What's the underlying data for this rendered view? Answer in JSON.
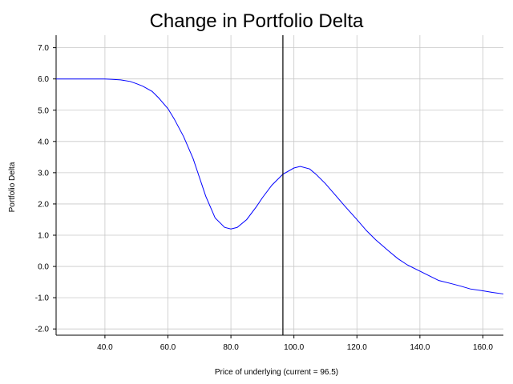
{
  "chart_data": {
    "type": "line",
    "title": "Change in Portfolio Delta",
    "xlabel": "Price of underlying (current = 96.5)",
    "ylabel": "Portfolio Delta",
    "xlim": [
      24.5,
      166.5
    ],
    "ylim": [
      -2.2,
      7.4
    ],
    "x_ticks": [
      {
        "value": 40,
        "label": "40.0"
      },
      {
        "value": 60,
        "label": "60.0"
      },
      {
        "value": 80,
        "label": "80.0"
      },
      {
        "value": 100,
        "label": "100.0"
      },
      {
        "value": 120,
        "label": "120.0"
      },
      {
        "value": 140,
        "label": "140.0"
      },
      {
        "value": 160,
        "label": "160.0"
      }
    ],
    "y_ticks": [
      {
        "value": -2,
        "label": "-2.0"
      },
      {
        "value": -1,
        "label": "-1.0"
      },
      {
        "value": 0,
        "label": "0.0"
      },
      {
        "value": 1,
        "label": "1.0"
      },
      {
        "value": 2,
        "label": "2.0"
      },
      {
        "value": 3,
        "label": "3.0"
      },
      {
        "value": 4,
        "label": "4.0"
      },
      {
        "value": 5,
        "label": "5.0"
      },
      {
        "value": 6,
        "label": "6.0"
      },
      {
        "value": 7,
        "label": "7.0"
      }
    ],
    "grid": true,
    "current_price": 96.5,
    "colors": {
      "series": "#0000ff",
      "current_marker": "#000000",
      "grid": "#c8c8c8",
      "axis": "#000000"
    },
    "series": [
      {
        "x": [
          24.5,
          30,
          35,
          40,
          42,
          45,
          48,
          50,
          52,
          55,
          57,
          60,
          62,
          65,
          68,
          70,
          72,
          75,
          78,
          80,
          82,
          85,
          88,
          90,
          93,
          96.5,
          100,
          102,
          105,
          107,
          110,
          113,
          116,
          120,
          123,
          126,
          130,
          133,
          136,
          140,
          143,
          146,
          150,
          153,
          156,
          160,
          163,
          166.5
        ],
        "y": [
          6.0,
          6.0,
          6.0,
          6.0,
          5.99,
          5.97,
          5.92,
          5.85,
          5.77,
          5.6,
          5.4,
          5.05,
          4.72,
          4.15,
          3.45,
          2.85,
          2.25,
          1.55,
          1.25,
          1.2,
          1.25,
          1.5,
          1.9,
          2.2,
          2.6,
          2.95,
          3.15,
          3.2,
          3.12,
          2.95,
          2.65,
          2.3,
          1.95,
          1.5,
          1.15,
          0.85,
          0.5,
          0.25,
          0.05,
          -0.15,
          -0.3,
          -0.45,
          -0.55,
          -0.63,
          -0.72,
          -0.78,
          -0.83,
          -0.88
        ]
      }
    ]
  }
}
